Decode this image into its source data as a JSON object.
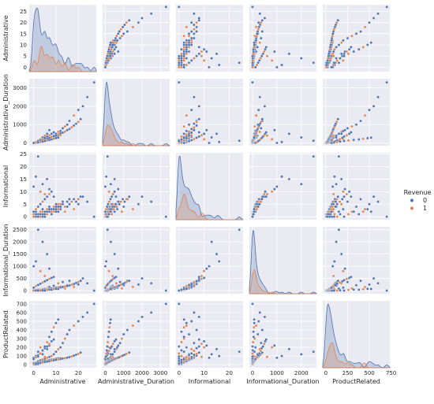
{
  "colors": {
    "panel_bg": "#eaeaf2",
    "grid": "#ffffff",
    "class_0": "#4c72b0",
    "class_1": "#dd8452"
  },
  "chart_data": {
    "type": "scatter",
    "subtype": "pairplot",
    "variables": [
      "Administrative",
      "Administrative_Duration",
      "Informational",
      "Informational_Duration",
      "ProductRelated"
    ],
    "ranges": {
      "Administrative": [
        -2,
        28
      ],
      "Administrative_Duration": [
        -150,
        3500
      ],
      "Informational": [
        -1.2,
        25.5
      ],
      "Informational_Duration": [
        -130,
        2620
      ],
      "ProductRelated": [
        -35,
        735
      ]
    },
    "ticks": {
      "Administrative": [
        0,
        10,
        20
      ],
      "Administrative_Duration": [
        0,
        1000,
        2000,
        3000
      ],
      "Informational": [
        0,
        10,
        20
      ],
      "Informational_Duration": [
        0,
        1000,
        2000
      ],
      "ProductRelated": [
        0,
        250,
        500,
        750
      ]
    },
    "yticks": {
      "Administrative": [
        0,
        5,
        10,
        15,
        20,
        25
      ],
      "Administrative_Duration": [
        0,
        1000,
        2000,
        3000
      ],
      "Informational": [
        0,
        5,
        10,
        15,
        20,
        25
      ],
      "Informational_Duration": [
        0,
        500,
        1000,
        1500,
        2000,
        2500
      ],
      "ProductRelated": [
        0,
        100,
        200,
        300,
        400,
        500,
        600,
        700
      ]
    },
    "diagonal": "kde",
    "hue": {
      "name": "Revenue",
      "levels": [
        {
          "label": "0",
          "color": "#4c72b0"
        },
        {
          "label": "1",
          "color": "#dd8452"
        }
      ]
    },
    "legend_position": "right",
    "points": [
      [
        0,
        0,
        0,
        0,
        1,
        0
      ],
      [
        0,
        0,
        0,
        0,
        2,
        0
      ],
      [
        0,
        0,
        0,
        0,
        5,
        0
      ],
      [
        0,
        0,
        0,
        0,
        10,
        0
      ],
      [
        0,
        0,
        0,
        0,
        20,
        0
      ],
      [
        1,
        10,
        0,
        0,
        15,
        0
      ],
      [
        1,
        30,
        0,
        0,
        25,
        0
      ],
      [
        2,
        60,
        0,
        0,
        30,
        0
      ],
      [
        2,
        45,
        1,
        20,
        40,
        0
      ],
      [
        3,
        80,
        0,
        0,
        35,
        1
      ],
      [
        3,
        100,
        1,
        40,
        50,
        0
      ],
      [
        4,
        130,
        0,
        0,
        45,
        0
      ],
      [
        4,
        90,
        2,
        60,
        60,
        1
      ],
      [
        5,
        200,
        1,
        30,
        55,
        0
      ],
      [
        5,
        150,
        0,
        0,
        70,
        0
      ],
      [
        6,
        250,
        2,
        100,
        80,
        1
      ],
      [
        7,
        300,
        3,
        150,
        90,
        0
      ],
      [
        8,
        350,
        1,
        50,
        100,
        1
      ],
      [
        9,
        400,
        4,
        200,
        120,
        0
      ],
      [
        10,
        500,
        2,
        80,
        150,
        0
      ],
      [
        11,
        600,
        5,
        300,
        180,
        1
      ],
      [
        12,
        650,
        3,
        120,
        200,
        0
      ],
      [
        13,
        800,
        6,
        350,
        250,
        0
      ],
      [
        14,
        900,
        2,
        90,
        300,
        1
      ],
      [
        15,
        1000,
        4,
        220,
        350,
        0
      ],
      [
        16,
        1200,
        7,
        400,
        400,
        0
      ],
      [
        18,
        1500,
        3,
        150,
        450,
        1
      ],
      [
        20,
        1800,
        5,
        250,
        500,
        0
      ],
      [
        22,
        2000,
        8,
        500,
        550,
        0
      ],
      [
        24,
        2500,
        6,
        300,
        600,
        0
      ],
      [
        27,
        3300,
        0,
        0,
        700,
        0
      ],
      [
        0,
        0,
        12,
        1000,
        80,
        0
      ],
      [
        1,
        50,
        16,
        1200,
        100,
        0
      ],
      [
        2,
        120,
        24,
        2500,
        150,
        0
      ],
      [
        3,
        200,
        10,
        800,
        200,
        1
      ],
      [
        4,
        300,
        13,
        2000,
        120,
        0
      ],
      [
        5,
        400,
        9,
        600,
        90,
        1
      ],
      [
        6,
        500,
        15,
        1500,
        180,
        0
      ],
      [
        7,
        700,
        11,
        900,
        220,
        0
      ],
      [
        0,
        0,
        0,
        0,
        3,
        0
      ],
      [
        1,
        20,
        0,
        0,
        8,
        0
      ],
      [
        2,
        40,
        0,
        0,
        12,
        0
      ],
      [
        3,
        60,
        1,
        10,
        18,
        0
      ],
      [
        0,
        0,
        1,
        15,
        6,
        1
      ],
      [
        1,
        35,
        2,
        25,
        22,
        0
      ],
      [
        2,
        70,
        1,
        35,
        28,
        0
      ],
      [
        3,
        110,
        2,
        45,
        33,
        1
      ],
      [
        4,
        140,
        3,
        55,
        38,
        0
      ],
      [
        5,
        170,
        2,
        65,
        42,
        0
      ],
      [
        6,
        210,
        3,
        75,
        48,
        1
      ],
      [
        7,
        240,
        4,
        85,
        52,
        0
      ],
      [
        8,
        270,
        3,
        95,
        58,
        0
      ],
      [
        9,
        310,
        4,
        110,
        64,
        1
      ],
      [
        10,
        340,
        5,
        125,
        68,
        0
      ],
      [
        11,
        380,
        4,
        140,
        74,
        0
      ],
      [
        12,
        420,
        5,
        160,
        78,
        1
      ],
      [
        1,
        15,
        0,
        0,
        4,
        0
      ],
      [
        2,
        25,
        0,
        0,
        7,
        0
      ],
      [
        0,
        0,
        0,
        0,
        9,
        1
      ],
      [
        1,
        55,
        1,
        5,
        14,
        0
      ],
      [
        2,
        85,
        0,
        0,
        16,
        0
      ],
      [
        3,
        95,
        1,
        18,
        21,
        0
      ],
      [
        4,
        160,
        2,
        30,
        26,
        1
      ],
      [
        5,
        190,
        1,
        22,
        31,
        0
      ],
      [
        6,
        230,
        2,
        48,
        36,
        0
      ],
      [
        7,
        280,
        3,
        68,
        41,
        0
      ],
      [
        8,
        330,
        2,
        52,
        46,
        1
      ],
      [
        9,
        360,
        3,
        88,
        51,
        0
      ],
      [
        10,
        410,
        4,
        105,
        56,
        0
      ],
      [
        11,
        460,
        3,
        118,
        61,
        1
      ],
      [
        12,
        520,
        4,
        135,
        66,
        0
      ],
      [
        13,
        560,
        5,
        150,
        71,
        0
      ],
      [
        14,
        620,
        4,
        170,
        76,
        1
      ],
      [
        15,
        700,
        6,
        190,
        82,
        0
      ],
      [
        16,
        760,
        5,
        210,
        88,
        0
      ],
      [
        17,
        850,
        6,
        240,
        95,
        1
      ],
      [
        18,
        950,
        7,
        270,
        105,
        0
      ],
      [
        19,
        1050,
        6,
        310,
        115,
        0
      ],
      [
        20,
        1150,
        7,
        350,
        125,
        1
      ],
      [
        21,
        1300,
        8,
        400,
        140,
        0
      ],
      [
        0,
        0,
        2,
        120,
        65,
        0
      ],
      [
        1,
        45,
        3,
        180,
        85,
        1
      ],
      [
        2,
        95,
        4,
        230,
        110,
        0
      ],
      [
        3,
        150,
        5,
        280,
        130,
        0
      ],
      [
        4,
        210,
        6,
        330,
        160,
        1
      ],
      [
        5,
        280,
        7,
        380,
        190,
        0
      ],
      [
        6,
        350,
        8,
        430,
        210,
        0
      ],
      [
        7,
        420,
        9,
        480,
        240,
        1
      ],
      [
        8,
        500,
        10,
        520,
        270,
        0
      ],
      [
        9,
        580,
        8,
        560,
        290,
        0
      ],
      [
        2,
        30,
        0,
        0,
        95,
        0
      ],
      [
        3,
        55,
        0,
        0,
        130,
        1
      ],
      [
        4,
        75,
        1,
        12,
        165,
        0
      ],
      [
        5,
        105,
        0,
        0,
        210,
        0
      ],
      [
        6,
        135,
        1,
        28,
        260,
        1
      ],
      [
        7,
        165,
        2,
        42,
        320,
        0
      ],
      [
        8,
        195,
        1,
        36,
        380,
        0
      ],
      [
        9,
        225,
        2,
        58,
        430,
        1
      ],
      [
        10,
        260,
        3,
        72,
        480,
        0
      ],
      [
        11,
        290,
        2,
        66,
        520,
        0
      ]
    ]
  }
}
